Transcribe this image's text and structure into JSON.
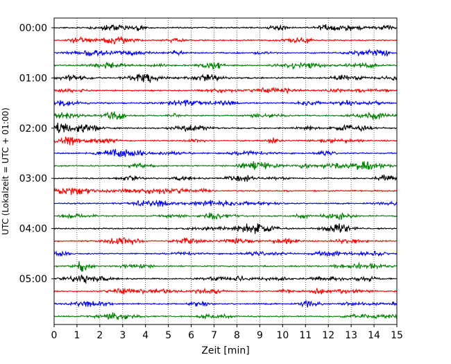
{
  "chart_data": {
    "type": "line",
    "title": "",
    "xlabel": "Zeit  [min]",
    "ylabel": "UTC (Lokalzeit = UTC + 01:00)",
    "xlim": [
      0,
      15
    ],
    "x_ticks": [
      "0",
      "1",
      "2",
      "3",
      "4",
      "5",
      "6",
      "7",
      "8",
      "9",
      "10",
      "11",
      "12",
      "13",
      "14",
      "15"
    ],
    "y_ticks": [
      "00:00",
      "01:00",
      "02:00",
      "03:00",
      "04:00",
      "05:00"
    ],
    "grid": "vertical dotted",
    "legend": "none",
    "trace_colors": [
      "#000000",
      "#ff0000",
      "#0000ff",
      "#008000"
    ],
    "trace_count": 24,
    "trace_interval_minutes": 15,
    "trace_start_times": [
      "00:00",
      "00:15",
      "00:30",
      "00:45",
      "01:00",
      "01:15",
      "01:30",
      "01:45",
      "02:00",
      "02:15",
      "02:30",
      "02:45",
      "03:00",
      "03:15",
      "03:30",
      "03:45",
      "04:00",
      "04:15",
      "04:30",
      "04:45",
      "05:00",
      "05:15",
      "05:30",
      "05:45"
    ]
  }
}
